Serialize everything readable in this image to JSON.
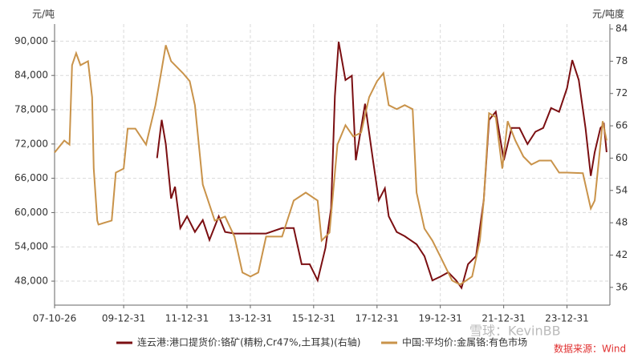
{
  "chart_data": {
    "type": "line",
    "y_unit": "元/吨",
    "y2_unit": "元/吨度",
    "xlim": [
      "07-10-26",
      "25-05-09"
    ],
    "xticks": [
      "07-10-26",
      "09-12-31",
      "11-12-31",
      "13-12-31",
      "15-12-31",
      "17-12-31",
      "19-12-31",
      "21-12-31",
      "23-12-31"
    ],
    "ylim": [
      43800,
      93000
    ],
    "yticks": [
      {
        "value": 48000,
        "label": "48,000"
      },
      {
        "value": 54000,
        "label": "54,000"
      },
      {
        "value": 60000,
        "label": "60,000"
      },
      {
        "value": 66000,
        "label": "66,000"
      },
      {
        "value": 72000,
        "label": "72,000"
      },
      {
        "value": 78000,
        "label": "78,000"
      },
      {
        "value": 84000,
        "label": "84,000"
      },
      {
        "value": 90000,
        "label": "90,000"
      }
    ],
    "y2lim": [
      32.7,
      84.9
    ],
    "y2ticks": [
      36,
      42,
      48,
      54,
      60,
      66,
      72,
      78,
      84
    ],
    "grid": true,
    "legend": "bottom",
    "watermark": "雪球：KevinBB",
    "source": "数据来源：Wind",
    "series": [
      {
        "name": "连云港:港口提货价:铬矿(精粉,Cr47%,土耳其)(右轴)",
        "color": "#7b0f12",
        "axis": "y2",
        "x": [
          "11-01-20",
          "11-03-15",
          "11-05-01",
          "11-07-01",
          "11-08-15",
          "11-10-15",
          "12-01-01",
          "12-04-01",
          "12-07-01",
          "12-09-15",
          "13-01-01",
          "13-03-15",
          "13-07-01",
          "14-04-01",
          "14-07-01",
          "15-01-01",
          "15-05-15",
          "15-08-15",
          "15-11-15",
          "16-02-15",
          "16-05-15",
          "16-07-20",
          "16-09-01",
          "16-10-15",
          "17-01-01",
          "17-03-15",
          "17-05-01",
          "17-07-01",
          "17-08-15",
          "17-11-15",
          "18-01-20",
          "18-04-01",
          "18-05-15",
          "18-08-15",
          "18-11-15",
          "19-04-01",
          "19-07-01",
          "19-10-01",
          "20-01-01",
          "20-04-01",
          "20-07-01",
          "20-09-01",
          "20-11-15",
          "21-02-15",
          "21-05-15",
          "21-07-15",
          "21-10-01",
          "22-01-01",
          "22-04-01",
          "22-07-01",
          "22-10-01",
          "23-01-01",
          "23-04-01",
          "23-07-01",
          "23-10-01",
          "24-01-01",
          "24-03-01",
          "24-05-15",
          "24-08-01",
          "24-10-01",
          "24-11-15",
          "25-01-20",
          "25-03-01",
          "25-04-01"
        ],
        "values": [
          60.0,
          67.1,
          62.6,
          52.5,
          54.7,
          47.0,
          49.2,
          46.3,
          48.5,
          44.8,
          49.2,
          46.3,
          46.0,
          46.0,
          46.0,
          47.0,
          47.0,
          40.3,
          40.3,
          37.3,
          43.3,
          50.7,
          71.5,
          81.6,
          74.5,
          75.3,
          59.6,
          65.6,
          70.1,
          59.6,
          52.2,
          54.4,
          49.2,
          46.3,
          45.5,
          44.0,
          41.8,
          37.3,
          38.0,
          38.8,
          37.3,
          35.9,
          40.3,
          41.8,
          52.2,
          67.1,
          68.6,
          59.6,
          65.6,
          65.6,
          62.6,
          64.9,
          65.6,
          69.3,
          68.6,
          73.0,
          78.2,
          74.5,
          65.6,
          56.7,
          61.1,
          65.6,
          66.3,
          61.1
        ]
      },
      {
        "name": "中国:平均价:金属铬:有色市场",
        "color": "#c9934a",
        "x": [
          "07-10-26",
          "08-02-15",
          "08-04-15",
          "08-05-15",
          "08-07-01",
          "08-08-20",
          "08-11-15",
          "09-01-01",
          "09-01-20",
          "09-03-01",
          "09-03-15",
          "09-08-15",
          "09-10-01",
          "09-12-31",
          "10-02-15",
          "10-05-15",
          "10-09-15",
          "11-01-01",
          "11-03-15",
          "11-05-01",
          "11-07-01",
          "11-11-15",
          "12-02-01",
          "12-04-01",
          "12-07-01",
          "12-11-15",
          "13-03-15",
          "13-07-01",
          "13-10-01",
          "14-01-01",
          "14-04-01",
          "14-07-01",
          "15-01-01",
          "15-05-15",
          "15-10-01",
          "16-02-15",
          "16-04-01",
          "16-07-01",
          "16-10-01",
          "17-01-01",
          "17-04-01",
          "17-07-01",
          "17-10-01",
          "18-01-01",
          "18-03-15",
          "18-05-15",
          "18-08-15",
          "18-11-15",
          "19-02-15",
          "19-04-01",
          "19-07-01",
          "19-10-01",
          "20-01-01",
          "20-05-15",
          "20-08-15",
          "21-01-01",
          "21-04-01",
          "21-05-15",
          "21-07-15",
          "21-10-01",
          "21-12-15",
          "22-02-15",
          "22-05-15",
          "22-08-15",
          "22-11-15",
          "23-02-15",
          "23-07-01",
          "23-10-01",
          "24-01-01",
          "24-07-01",
          "24-10-01",
          "24-11-15",
          "25-01-01",
          "25-02-15",
          "25-04-01"
        ],
        "values": [
          70500,
          72600,
          71900,
          85800,
          87900,
          85800,
          86500,
          80200,
          67700,
          58600,
          57900,
          58600,
          67000,
          67700,
          74700,
          74700,
          71900,
          78800,
          85100,
          89300,
          86500,
          84400,
          83000,
          78800,
          64900,
          58600,
          59300,
          55800,
          49500,
          48800,
          49500,
          55800,
          55800,
          62100,
          63500,
          62100,
          55100,
          56500,
          71900,
          75300,
          73300,
          74000,
          80200,
          83000,
          84400,
          78800,
          78100,
          78800,
          78100,
          63500,
          57200,
          55100,
          52300,
          48100,
          47400,
          48800,
          55100,
          62100,
          77400,
          76700,
          67700,
          76000,
          72600,
          69800,
          68400,
          69100,
          69100,
          67000,
          67000,
          66900,
          60700,
          62100,
          69100,
          76000,
          72600
        ]
      }
    ]
  }
}
